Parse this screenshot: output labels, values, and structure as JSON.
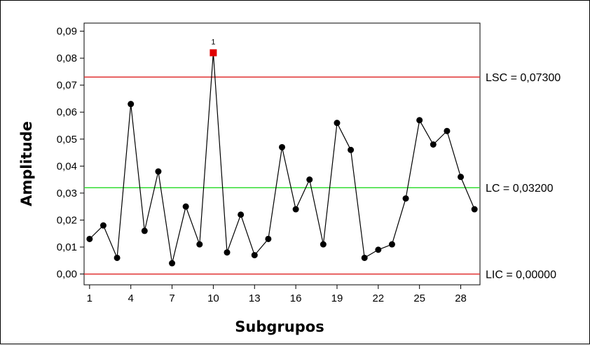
{
  "chart_data": {
    "type": "line",
    "title": "",
    "xlabel": "Subgrupos",
    "ylabel": "Amplitude",
    "x": [
      1,
      2,
      3,
      4,
      5,
      6,
      7,
      8,
      9,
      10,
      11,
      12,
      13,
      14,
      15,
      16,
      17,
      18,
      19,
      20,
      21,
      22,
      23,
      24,
      25,
      26,
      27,
      28,
      29
    ],
    "series": [
      {
        "values": [
          0.013,
          0.018,
          0.006,
          0.063,
          0.016,
          0.038,
          0.004,
          0.025,
          0.011,
          0.082,
          0.008,
          0.022,
          0.007,
          0.013,
          0.047,
          0.024,
          0.035,
          0.011,
          0.056,
          0.046,
          0.006,
          0.009,
          0.011,
          0.028,
          0.057,
          0.048,
          0.053,
          0.036,
          0.024
        ],
        "color": "#000000",
        "marker": "circle"
      }
    ],
    "out_of_control": [
      {
        "subgroup": 10,
        "flag": "1",
        "color": "#e00000",
        "marker": "square"
      }
    ],
    "xticks": [
      1,
      4,
      7,
      10,
      13,
      16,
      19,
      22,
      25,
      28
    ],
    "xtick_labels": [
      "1",
      "4",
      "7",
      "10",
      "13",
      "16",
      "19",
      "22",
      "25",
      "28"
    ],
    "yticks": [
      0,
      0.01,
      0.02,
      0.03,
      0.04,
      0.05,
      0.06,
      0.07,
      0.08,
      0.09
    ],
    "ytick_labels": [
      "0,00",
      "0,01",
      "0,02",
      "0,03",
      "0,04",
      "0,05",
      "0,06",
      "0,07",
      "0,08",
      "0,09"
    ],
    "xlim": [
      0.6,
      29.4
    ],
    "ylim": [
      -0.004,
      0.093
    ],
    "control_limits": [
      {
        "name": "LSC",
        "value": 0.073,
        "label": "LSC = 0,07300",
        "color": "#e03030"
      },
      {
        "name": "LC",
        "value": 0.032,
        "label": "LC = 0,03200",
        "color": "#33dd33"
      },
      {
        "name": "LIC",
        "value": 0.0,
        "label": "LIC = 0,00000",
        "color": "#e03030"
      }
    ],
    "grid": false
  }
}
